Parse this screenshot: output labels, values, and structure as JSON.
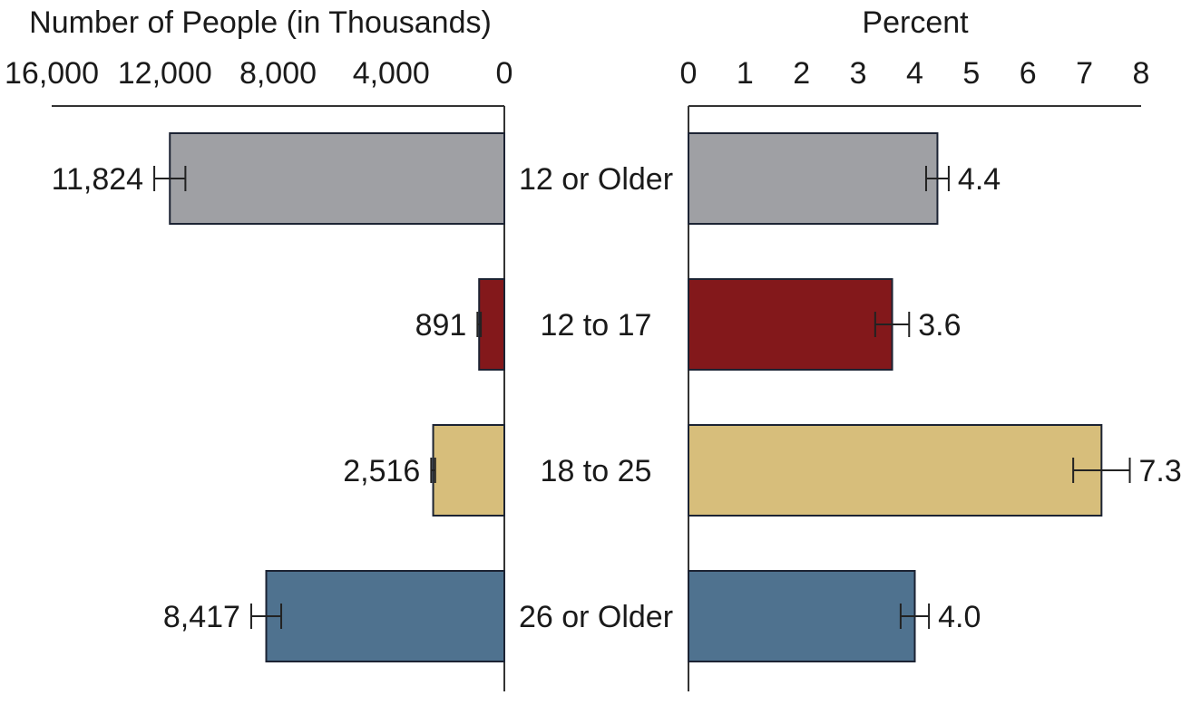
{
  "chart_data": [
    {
      "type": "bar",
      "orientation": "horizontal",
      "direction": "leftward",
      "title": "Number of People (in Thousands)",
      "xlim": [
        0,
        16000
      ],
      "ticks": [
        "16,000",
        "12,000",
        "8,000",
        "4,000",
        "0"
      ],
      "tick_values": [
        16000,
        12000,
        8000,
        4000,
        0
      ],
      "categories": [
        "12 or Older",
        "12 to 17",
        "18 to 25",
        "26 or Older"
      ],
      "values": [
        11824,
        891,
        2516,
        8417
      ],
      "labels": [
        "11,824",
        "891",
        "2,516",
        "8,417"
      ],
      "error": [
        550,
        60,
        70,
        530
      ]
    },
    {
      "type": "bar",
      "orientation": "horizontal",
      "direction": "rightward",
      "title": "Percent",
      "xlim": [
        0,
        8
      ],
      "ticks": [
        "0",
        "1",
        "2",
        "3",
        "4",
        "5",
        "6",
        "7",
        "8"
      ],
      "tick_values": [
        0,
        1,
        2,
        3,
        4,
        5,
        6,
        7,
        8
      ],
      "categories": [
        "12 or Older",
        "12 to 17",
        "18 to 25",
        "26 or Older"
      ],
      "values": [
        4.4,
        3.6,
        7.3,
        4.0
      ],
      "labels": [
        "4.4",
        "3.6",
        "7.3",
        "4.0"
      ],
      "error": [
        0.2,
        0.3,
        0.5,
        0.25
      ]
    }
  ],
  "colors": [
    "#9fa0a4",
    "#83181b",
    "#d7be7b",
    "#4f728f"
  ],
  "border_color": "#1c2333"
}
